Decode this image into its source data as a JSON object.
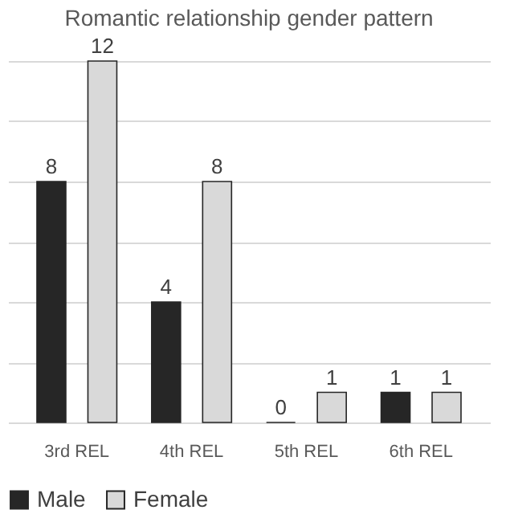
{
  "chart_data": {
    "type": "bar",
    "title": "Romantic relationship gender pattern",
    "categories": [
      "3rd REL",
      "4th REL",
      "5th REL",
      "6th REL"
    ],
    "series": [
      {
        "name": "Male",
        "color": "#262626",
        "values": [
          8,
          4,
          0,
          1
        ]
      },
      {
        "name": "Female",
        "color": "#d9d9d9",
        "values": [
          12,
          8,
          1,
          1
        ]
      }
    ],
    "tick_labels": "x",
    "grid": "y",
    "legend": "bottom",
    "data_labels": true
  }
}
